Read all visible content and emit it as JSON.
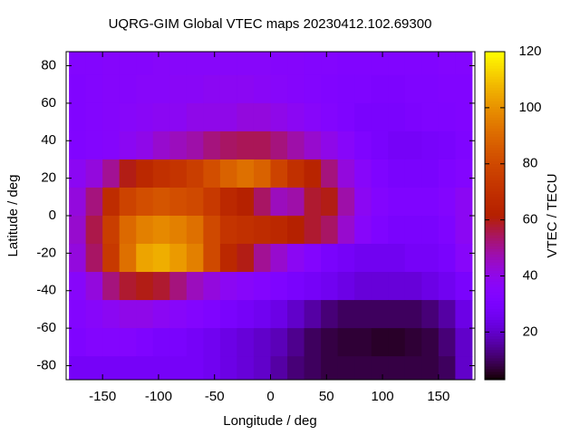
{
  "chart_data": {
    "type": "heatmap",
    "title": "UQRG-GIM Global VTEC maps 20230412.102.69300",
    "x_label": "Longitude / deg",
    "y_label": "Latitude / deg",
    "colorbar_label": "VTEC / TECU",
    "xlim": [
      -182.5,
      182.5
    ],
    "ylim": [
      -87.5,
      87.5
    ],
    "zlim": [
      3,
      120
    ],
    "xticks": [
      -150,
      -100,
      -50,
      0,
      50,
      100,
      150
    ],
    "yticks": [
      -80,
      -60,
      -40,
      -20,
      0,
      20,
      40,
      60,
      80
    ],
    "zticks": [
      20,
      40,
      60,
      80,
      100,
      120
    ],
    "x": [
      -172.5,
      -157.5,
      -142.5,
      -127.5,
      -112.5,
      -97.5,
      -82.5,
      -67.5,
      -52.5,
      -37.5,
      -22.5,
      -7.5,
      7.5,
      22.5,
      37.5,
      52.5,
      67.5,
      82.5,
      97.5,
      112.5,
      127.5,
      142.5,
      157.5,
      172.5
    ],
    "y": [
      82.5,
      67.5,
      52.5,
      37.5,
      22.5,
      7.5,
      -7.5,
      -22.5,
      -37.5,
      -52.5,
      -67.5,
      -82.5
    ],
    "z": [
      [
        34,
        34,
        35,
        35,
        35,
        36,
        36,
        36,
        36,
        36,
        36,
        36,
        35,
        35,
        34,
        34,
        33,
        33,
        33,
        33,
        33,
        33,
        34,
        34
      ],
      [
        33,
        34,
        35,
        35,
        36,
        36,
        37,
        37,
        38,
        38,
        38,
        37,
        36,
        35,
        34,
        33,
        32,
        32,
        31,
        31,
        32,
        32,
        33,
        33
      ],
      [
        33,
        34,
        35,
        36,
        37,
        38,
        38,
        40,
        40,
        40,
        42,
        42,
        40,
        38,
        36,
        34,
        32,
        30,
        30,
        30,
        31,
        32,
        32,
        33
      ],
      [
        33,
        34,
        35,
        38,
        40,
        44,
        46,
        48,
        52,
        54,
        55,
        55,
        52,
        48,
        44,
        40,
        36,
        32,
        30,
        28,
        28,
        29,
        30,
        32
      ],
      [
        38,
        42,
        50,
        60,
        66,
        70,
        72,
        76,
        82,
        88,
        92,
        88,
        78,
        70,
        64,
        52,
        42,
        36,
        32,
        30,
        30,
        30,
        32,
        34
      ],
      [
        42,
        52,
        68,
        78,
        82,
        84,
        82,
        80,
        74,
        66,
        62,
        54,
        46,
        48,
        58,
        60,
        48,
        38,
        34,
        32,
        32,
        32,
        34,
        38
      ],
      [
        44,
        56,
        76,
        90,
        96,
        98,
        96,
        92,
        80,
        72,
        70,
        68,
        66,
        62,
        58,
        54,
        44,
        36,
        32,
        30,
        30,
        30,
        32,
        38
      ],
      [
        42,
        54,
        74,
        92,
        104,
        106,
        102,
        96,
        80,
        66,
        60,
        50,
        44,
        38,
        34,
        30,
        28,
        26,
        26,
        26,
        28,
        28,
        30,
        36
      ],
      [
        36,
        42,
        52,
        58,
        60,
        58,
        52,
        46,
        42,
        38,
        36,
        34,
        32,
        30,
        28,
        26,
        24,
        22,
        22,
        22,
        22,
        24,
        26,
        30
      ],
      [
        34,
        36,
        38,
        40,
        40,
        38,
        36,
        34,
        32,
        30,
        28,
        26,
        24,
        20,
        16,
        12,
        10,
        10,
        10,
        10,
        10,
        12,
        16,
        24
      ],
      [
        32,
        34,
        34,
        34,
        32,
        30,
        30,
        28,
        26,
        24,
        22,
        20,
        18,
        14,
        10,
        8,
        7,
        7,
        6,
        6,
        7,
        8,
        12,
        20
      ],
      [
        28,
        28,
        28,
        28,
        28,
        28,
        28,
        28,
        26,
        24,
        22,
        20,
        16,
        12,
        10,
        8,
        8,
        8,
        8,
        8,
        8,
        8,
        10,
        20
      ]
    ]
  }
}
